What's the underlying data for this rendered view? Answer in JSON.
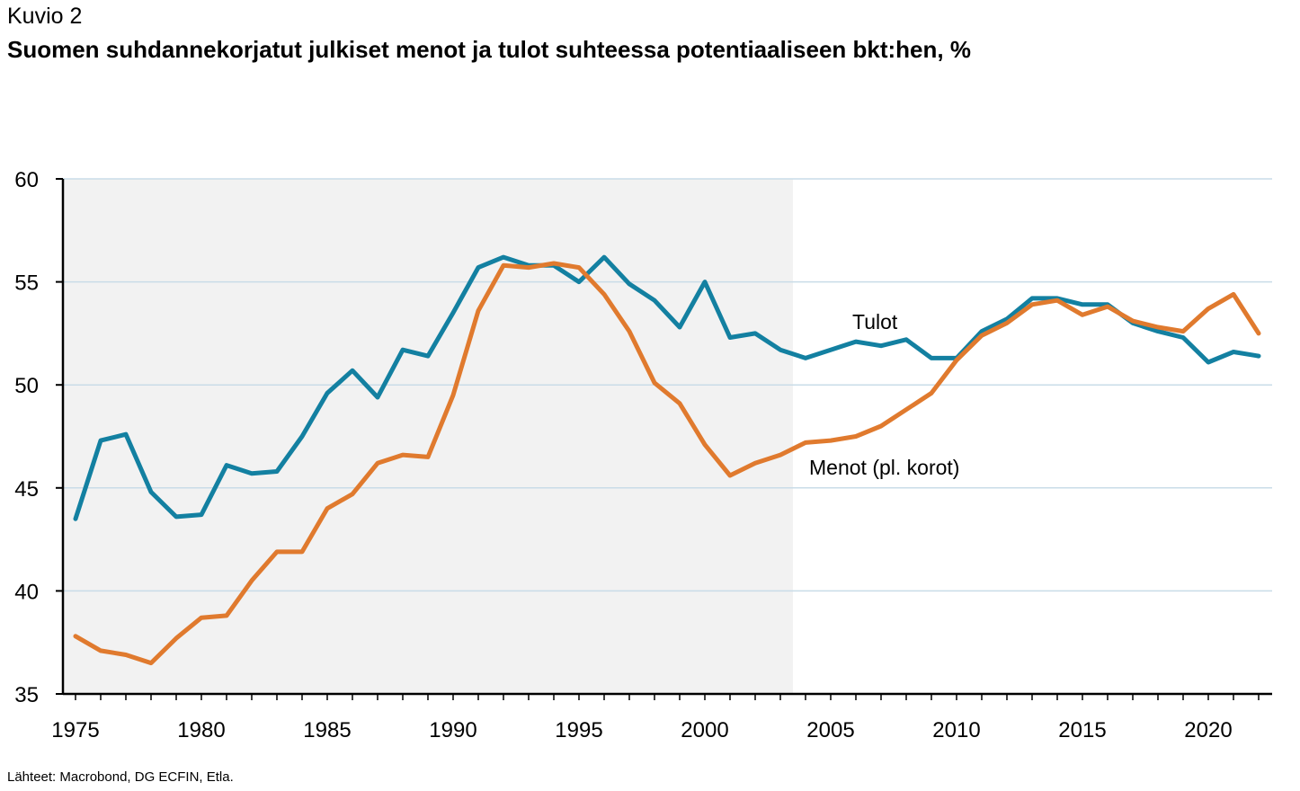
{
  "kicker": "Kuvio 2",
  "title": "Suomen suhdannekorjatut julkiset menot ja tulot suhteessa potentiaaliseen bkt:hen, %",
  "source": "Lähteet: Macrobond, DG ECFIN, Etla.",
  "chart_data": {
    "type": "line",
    "ylim": [
      35,
      60
    ],
    "xlim": [
      1975,
      2022
    ],
    "yticks": [
      35,
      40,
      45,
      50,
      55,
      60
    ],
    "xticks": [
      1975,
      1980,
      1985,
      1990,
      1995,
      2000,
      2005,
      2010,
      2015,
      2020
    ],
    "grid": true,
    "shaded_region": [
      1975,
      2003.5
    ],
    "x": [
      1975,
      1976,
      1977,
      1978,
      1979,
      1980,
      1981,
      1982,
      1983,
      1984,
      1985,
      1986,
      1987,
      1988,
      1989,
      1990,
      1991,
      1992,
      1993,
      1994,
      1995,
      1996,
      1997,
      1998,
      1999,
      2000,
      2001,
      2002,
      2003,
      2004,
      2005,
      2006,
      2007,
      2008,
      2009,
      2010,
      2011,
      2012,
      2013,
      2014,
      2015,
      2016,
      2017,
      2018,
      2019,
      2020,
      2021,
      2022
    ],
    "series": [
      {
        "name": "Tulot",
        "color": "#1380A1",
        "values": [
          43.5,
          47.3,
          47.6,
          44.8,
          43.6,
          43.7,
          46.1,
          45.7,
          45.8,
          47.5,
          49.6,
          50.7,
          49.4,
          51.7,
          51.4,
          53.5,
          55.7,
          56.2,
          55.8,
          55.8,
          55.0,
          56.2,
          54.9,
          54.1,
          52.8,
          55.0,
          52.3,
          52.5,
          51.7,
          51.3,
          51.7,
          52.1,
          51.9,
          52.2,
          51.3,
          51.3,
          52.6,
          53.2,
          54.2,
          54.2,
          53.9,
          53.9,
          53.0,
          52.6,
          52.3,
          51.1,
          51.6,
          51.4
        ]
      },
      {
        "name": "Menot (pl. korot)",
        "color": "#E07A2E",
        "values": [
          37.8,
          37.1,
          36.9,
          36.5,
          37.7,
          38.7,
          38.8,
          40.5,
          41.9,
          41.9,
          44.0,
          44.7,
          46.2,
          46.6,
          46.5,
          49.5,
          53.6,
          55.8,
          55.7,
          55.9,
          55.7,
          54.4,
          52.6,
          50.1,
          49.1,
          47.1,
          45.6,
          46.2,
          46.6,
          47.2,
          47.3,
          47.5,
          48.0,
          48.8,
          49.6,
          51.2,
          52.4,
          53.0,
          53.9,
          54.1,
          53.4,
          53.8,
          53.1,
          52.8,
          52.6,
          53.7,
          54.4,
          52.5
        ]
      }
    ]
  }
}
